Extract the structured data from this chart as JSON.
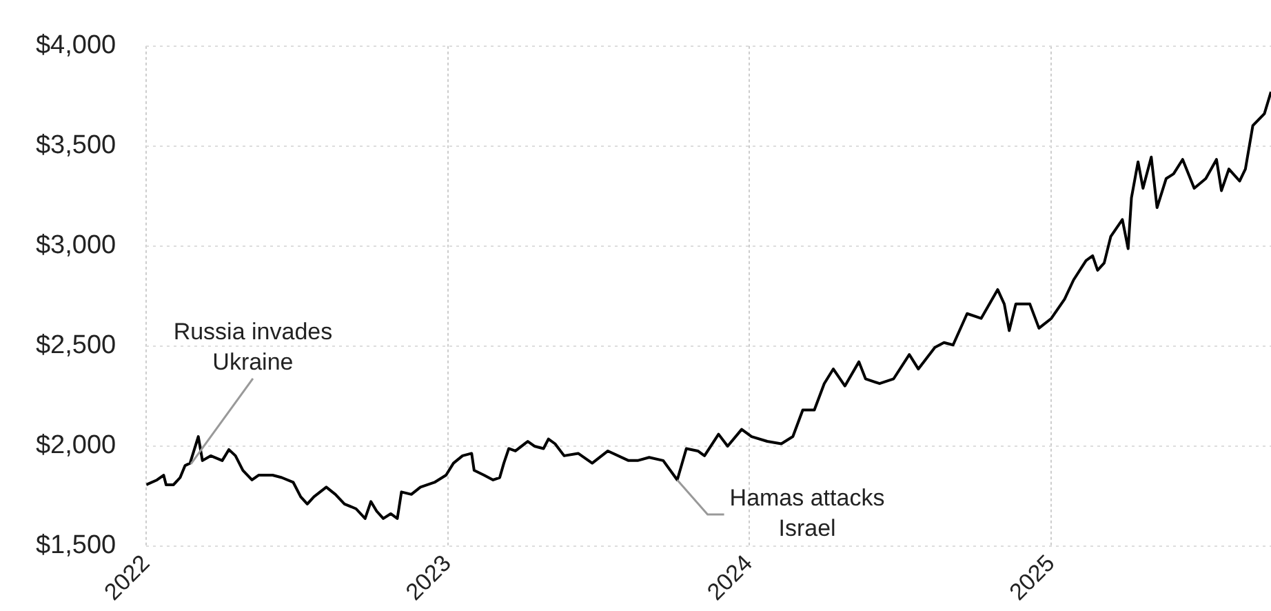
{
  "chart_data": {
    "type": "line",
    "x": [
      "2022-01-01",
      "2022-01-14",
      "2022-01-22",
      "2022-01-25",
      "2022-02-03",
      "2022-02-11",
      "2022-02-17",
      "2022-02-23",
      "2022-03-05",
      "2022-03-10",
      "2022-03-20",
      "2022-04-03",
      "2022-04-11",
      "2022-04-19",
      "2022-04-28",
      "2022-05-09",
      "2022-05-17",
      "2022-06-03",
      "2022-06-14",
      "2022-06-28",
      "2022-07-07",
      "2022-07-15",
      "2022-07-23",
      "2022-08-07",
      "2022-08-18",
      "2022-08-29",
      "2022-09-12",
      "2022-09-23",
      "2022-09-30",
      "2022-10-07",
      "2022-10-15",
      "2022-10-24",
      "2022-11-01",
      "2022-11-06",
      "2022-11-18",
      "2022-11-29",
      "2022-12-16",
      "2022-12-30",
      "2023-01-08",
      "2023-01-19",
      "2023-01-30",
      "2023-02-02",
      "2023-02-14",
      "2023-02-25",
      "2023-03-05",
      "2023-03-10",
      "2023-03-16",
      "2023-03-24",
      "2023-04-08",
      "2023-04-16",
      "2023-04-27",
      "2023-05-03",
      "2023-05-11",
      "2023-05-22",
      "2023-06-08",
      "2023-06-25",
      "2023-07-14",
      "2023-08-08",
      "2023-08-19",
      "2023-09-02",
      "2023-09-19",
      "2023-10-06",
      "2023-10-17",
      "2023-10-31",
      "2023-11-08",
      "2023-11-25",
      "2023-12-06",
      "2023-12-23",
      "2024-01-04",
      "2024-01-23",
      "2024-02-09",
      "2024-02-23",
      "2024-03-06",
      "2024-03-20",
      "2024-04-01",
      "2024-04-12",
      "2024-04-26",
      "2024-05-13",
      "2024-05-21",
      "2024-06-07",
      "2024-06-24",
      "2024-07-13",
      "2024-07-24",
      "2024-08-13",
      "2024-08-24",
      "2024-09-04",
      "2024-09-21",
      "2024-10-08",
      "2024-10-28",
      "2024-11-05",
      "2024-11-11",
      "2024-11-19",
      "2024-12-06",
      "2024-12-17",
      "2025-01-01",
      "2025-01-17",
      "2025-01-28",
      "2025-02-12",
      "2025-02-20",
      "2025-02-26",
      "2025-03-06",
      "2025-03-14",
      "2025-03-28",
      "2025-04-04",
      "2025-04-08",
      "2025-04-16",
      "2025-04-22",
      "2025-05-02",
      "2025-05-09",
      "2025-05-20",
      "2025-05-29",
      "2025-06-09",
      "2025-06-23",
      "2025-07-07",
      "2025-07-20",
      "2025-07-26",
      "2025-08-04",
      "2025-08-17",
      "2025-08-24",
      "2025-09-02",
      "2025-09-16",
      "2025-09-24"
    ],
    "series": [
      {
        "color": "#000000",
        "values": [
          1806,
          1830,
          1854,
          1806,
          1806,
          1842,
          1902,
          1914,
          2047,
          1927,
          1951,
          1927,
          1982,
          1951,
          1878,
          1830,
          1854,
          1854,
          1842,
          1818,
          1746,
          1710,
          1746,
          1794,
          1758,
          1710,
          1686,
          1637,
          1722,
          1674,
          1637,
          1661,
          1637,
          1770,
          1758,
          1794,
          1818,
          1854,
          1914,
          1951,
          1963,
          1878,
          1854,
          1830,
          1842,
          1914,
          1987,
          1975,
          2023,
          1999,
          1987,
          2035,
          2011,
          1951,
          1963,
          1914,
          1975,
          1927,
          1927,
          1943,
          1927,
          1830,
          1987,
          1975,
          1951,
          2059,
          1999,
          2083,
          2047,
          2023,
          2011,
          2047,
          2180,
          2180,
          2312,
          2385,
          2300,
          2421,
          2336,
          2312,
          2336,
          2457,
          2385,
          2493,
          2517,
          2505,
          2662,
          2638,
          2782,
          2710,
          2577,
          2710,
          2710,
          2589,
          2638,
          2734,
          2831,
          2927,
          2951,
          2879,
          2915,
          3048,
          3132,
          2987,
          3241,
          3421,
          3289,
          3445,
          3192,
          3337,
          3361,
          3433,
          3289,
          3337,
          3433,
          3277,
          3385,
          3325,
          3385,
          3602,
          3662,
          3771
        ]
      }
    ],
    "xlim": [
      "2022-01-01",
      "2025-09-24"
    ],
    "xticks": [
      "2022",
      "2023",
      "2024",
      "2025"
    ],
    "ylim": [
      1500,
      4000
    ],
    "yticks": [
      {
        "value": 1500,
        "label": "$1,500"
      },
      {
        "value": 2000,
        "label": "$2,000"
      },
      {
        "value": 2500,
        "label": "$2,500"
      },
      {
        "value": 3000,
        "label": "$3,000"
      },
      {
        "value": 3500,
        "label": "$3,500"
      },
      {
        "value": 4000,
        "label": "$4,000"
      }
    ],
    "grid": true,
    "annotations": [
      {
        "text": "Russia invades\nUkraine",
        "x": "2022-02-24",
        "y": 1910
      },
      {
        "text": "Hamas attacks\nIsrael",
        "x": "2023-10-06",
        "y": 1830
      }
    ]
  }
}
